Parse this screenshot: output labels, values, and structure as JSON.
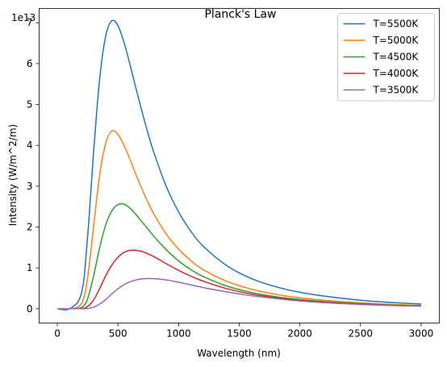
{
  "chart_data": {
    "type": "line",
    "title": "Planck's Law",
    "xlabel": "Wavelength (nm)",
    "ylabel": "Intensity (W/m^2/m)",
    "y_offset_label": "1e13",
    "xlim": [
      -150,
      3150
    ],
    "ylim": [
      -0.35,
      7.35
    ],
    "x_ticks": [
      0,
      500,
      1000,
      1500,
      2000,
      2500,
      3000
    ],
    "x_tick_labels": [
      "0",
      "500",
      "1000",
      "1500",
      "2000",
      "2500",
      "3000"
    ],
    "y_ticks": [
      0,
      1,
      2,
      3,
      4,
      5,
      6,
      7
    ],
    "y_tick_labels": [
      "0",
      "1",
      "2",
      "3",
      "4",
      "5",
      "6",
      "7"
    ],
    "grid": false,
    "legend_position": "top-right",
    "x": [
      1,
      100,
      200,
      250,
      300,
      350,
      400,
      450,
      500,
      550,
      600,
      650,
      700,
      750,
      800,
      900,
      1000,
      1100,
      1200,
      1400,
      1600,
      1800,
      2000,
      2250,
      2500,
      2750,
      3000
    ],
    "series": [
      {
        "name": "T=5500K",
        "color": "#1f77b4",
        "values": [
          0,
          0.0001,
          0.389,
          1.78,
          3.87,
          5.65,
          6.69,
          7.05,
          6.93,
          6.52,
          5.97,
          5.38,
          4.81,
          4.27,
          3.79,
          2.98,
          2.37,
          1.9,
          1.54,
          1.05,
          0.74,
          0.54,
          0.403,
          0.291,
          0.208,
          0.154,
          0.117
        ]
      },
      {
        "name": "T=5000K",
        "color": "#ff7f0e",
        "values": [
          0,
          0,
          0.128,
          0.766,
          2.03,
          3.29,
          4.06,
          4.35,
          4.27,
          4.0,
          3.65,
          3.27,
          2.92,
          2.59,
          2.3,
          1.82,
          1.46,
          1.18,
          0.962,
          0.667,
          0.479,
          0.354,
          0.268,
          0.195,
          0.144,
          0.107,
          0.081
        ]
      },
      {
        "name": "T=4500K",
        "color": "#2ca02c",
        "values": [
          0,
          0,
          0.032,
          0.248,
          0.814,
          1.51,
          2.06,
          2.4,
          2.55,
          2.56,
          2.46,
          2.3,
          2.12,
          1.94,
          1.76,
          1.44,
          1.17,
          0.96,
          0.793,
          0.553,
          0.399,
          0.296,
          0.225,
          0.165,
          0.122,
          0.092,
          0.071
        ]
      },
      {
        "name": "T=4000K",
        "color": "#d62728",
        "values": [
          0,
          0,
          0.005,
          0.057,
          0.219,
          0.496,
          0.813,
          1.07,
          1.26,
          1.38,
          1.43,
          1.43,
          1.4,
          1.34,
          1.27,
          1.1,
          0.94,
          0.8,
          0.679,
          0.49,
          0.36,
          0.27,
          0.207,
          0.151,
          0.113,
          0.085,
          0.066
        ]
      },
      {
        "name": "T=3500K",
        "color": "#9467bd",
        "values": [
          0,
          0,
          0.001,
          0.007,
          0.038,
          0.113,
          0.226,
          0.364,
          0.49,
          0.59,
          0.66,
          0.705,
          0.73,
          0.738,
          0.735,
          0.705,
          0.65,
          0.585,
          0.52,
          0.41,
          0.32,
          0.25,
          0.19,
          0.14,
          0.105,
          0.08,
          0.062
        ]
      }
    ]
  }
}
